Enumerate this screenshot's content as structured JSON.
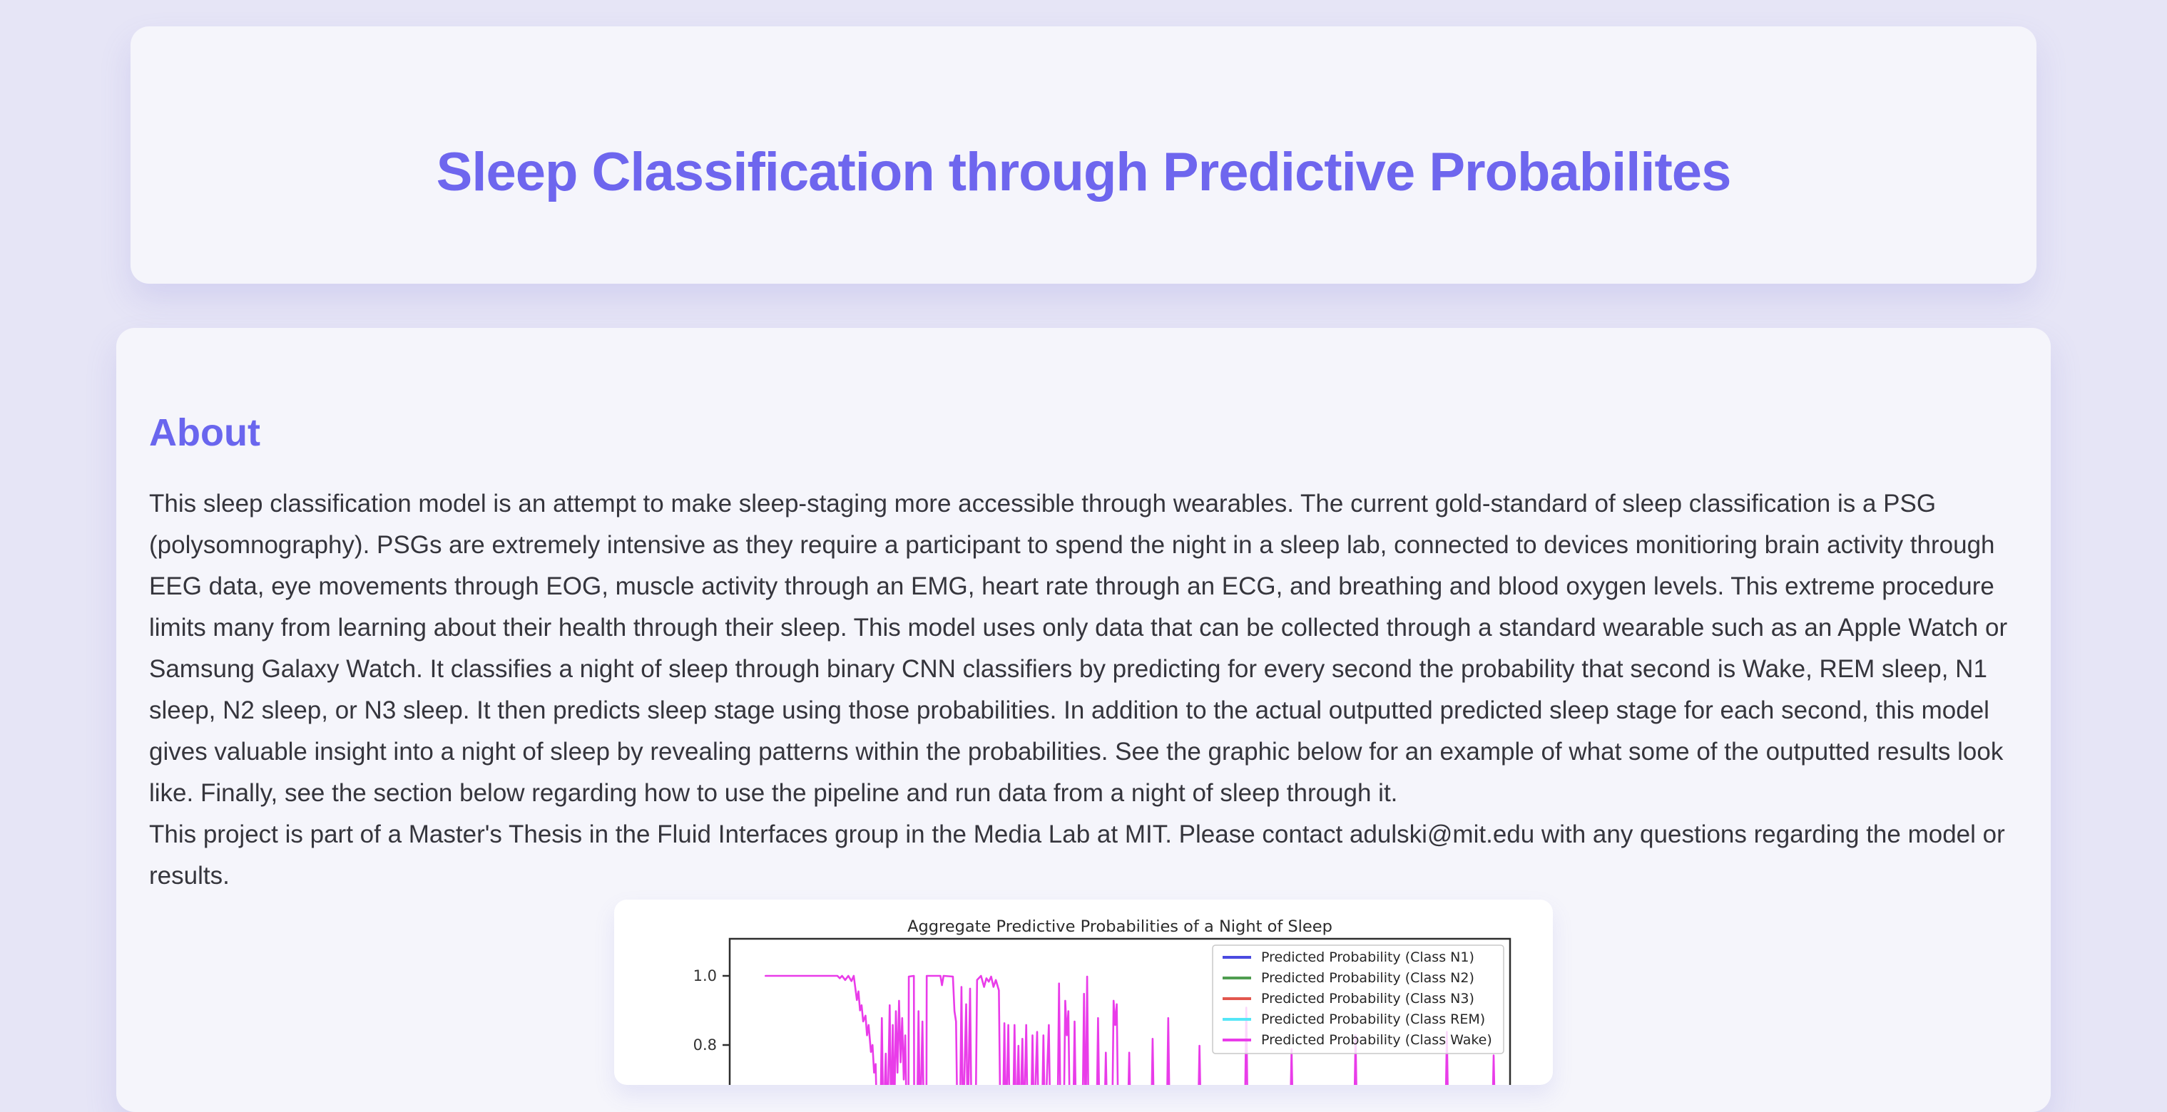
{
  "page": {
    "background_color": "#e6e5f6",
    "card_color": "#f5f5fb",
    "accent_color": "#6e66ee"
  },
  "header": {
    "title": "Sleep Classification through Predictive Probabilites"
  },
  "about": {
    "heading": "About",
    "paragraph1": "This sleep classification model is an attempt to make sleep-staging more accessible through wearables. The current gold-standard of sleep classification is a PSG (polysomnography). PSGs are extremely intensive as they require a participant to spend the night in a sleep lab, connected to devices monitioring brain activity through EEG data, eye movements through EOG, muscle activity through an EMG, heart rate through an ECG, and breathing and blood oxygen levels. This extreme procedure limits many from learning about their health through their sleep. This model uses only data that can be collected through a standard wearable such as an Apple Watch or Samsung Galaxy Watch. It classifies a night of sleep through binary CNN classifiers by predicting for every second the probability that second is Wake, REM sleep, N1 sleep, N2 sleep, or N3 sleep. It then predicts sleep stage using those probabilities. In addition to the actual outputted predicted sleep stage for each second, this model gives valuable insight into a night of sleep by revealing patterns within the probabilities. See the graphic below for an example of what some of the outputted results look like. Finally, see the section below regarding how to use the pipeline and run data from a night of sleep through it.",
    "paragraph2": "This project is part of a Master's Thesis in the Fluid Interfaces group in the Media Lab at MIT. Please contact adulski@mit.edu with any questions regarding the model or results."
  },
  "chart_data": {
    "type": "line",
    "title": "Aggregate Predictive Probabilities of a Night of Sleep",
    "xlabel": "",
    "ylabel": "",
    "grid": false,
    "legend_position": "upper right",
    "yticks": [
      {
        "label": "1.0",
        "value": 1.0
      },
      {
        "label": "0.8",
        "value": 0.8
      }
    ],
    "ylim_visible": [
      0.715,
      1.105
    ],
    "legend": [
      {
        "label": "Predicted Probability (Class N1)",
        "color": "#4a4ae0"
      },
      {
        "label": "Predicted Probability (Class N2)",
        "color": "#4f9d50"
      },
      {
        "label": "Predicted Probability (Class N3)",
        "color": "#e2574e"
      },
      {
        "label": "Predicted Probability (Class REM)",
        "color": "#55e6f7"
      },
      {
        "label": "Predicted Probability (Class Wake)",
        "color": "#e93ce9"
      }
    ],
    "series": [
      {
        "name": "Predicted Probability (Class Wake)",
        "color": "#e93ce9",
        "x_unit": "fraction of night",
        "points": [
          [
            0.046,
            1.0
          ],
          [
            0.138,
            1.0
          ],
          [
            0.141,
            0.993
          ],
          [
            0.144,
            1.0
          ],
          [
            0.148,
            0.988
          ],
          [
            0.152,
            1.0
          ],
          [
            0.156,
            0.985
          ],
          [
            0.159,
            1.0
          ],
          [
            0.161,
            0.965
          ],
          [
            0.163,
            0.93
          ],
          [
            0.165,
            0.955
          ],
          [
            0.167,
            0.9
          ],
          [
            0.169,
            0.915
          ],
          [
            0.171,
            0.868
          ],
          [
            0.174,
            0.885
          ],
          [
            0.176,
            0.828
          ],
          [
            0.178,
            0.858
          ],
          [
            0.181,
            0.78
          ],
          [
            0.183,
            0.8
          ],
          [
            0.185,
            0.72
          ],
          [
            0.187,
            0.745
          ],
          [
            0.189,
            0.55
          ],
          [
            0.193,
            0.55
          ],
          [
            0.195,
            0.878
          ],
          [
            0.197,
            0.55
          ],
          [
            0.2,
            0.775
          ],
          [
            0.202,
            0.55
          ],
          [
            0.205,
            0.915
          ],
          [
            0.207,
            0.55
          ],
          [
            0.209,
            0.858
          ],
          [
            0.211,
            0.6
          ],
          [
            0.213,
            0.898
          ],
          [
            0.215,
            0.72
          ],
          [
            0.217,
            0.928
          ],
          [
            0.219,
            0.75
          ],
          [
            0.221,
            0.878
          ],
          [
            0.223,
            0.7
          ],
          [
            0.225,
            0.828
          ],
          [
            0.227,
            0.55
          ],
          [
            0.229,
            0.55
          ],
          [
            0.2295,
            0.998
          ],
          [
            0.236,
            1.0
          ],
          [
            0.2365,
            0.55
          ],
          [
            0.24,
            0.55
          ],
          [
            0.242,
            0.898
          ],
          [
            0.244,
            0.55
          ],
          [
            0.247,
            0.868
          ],
          [
            0.249,
            0.55
          ],
          [
            0.252,
            0.55
          ],
          [
            0.2525,
            1.0
          ],
          [
            0.27,
            1.0
          ],
          [
            0.272,
            0.973
          ],
          [
            0.274,
            1.0
          ],
          [
            0.286,
            0.998
          ],
          [
            0.288,
            0.898
          ],
          [
            0.29,
            0.868
          ],
          [
            0.292,
            0.55
          ],
          [
            0.295,
            0.55
          ],
          [
            0.297,
            0.968
          ],
          [
            0.299,
            0.55
          ],
          [
            0.303,
            0.918
          ],
          [
            0.305,
            0.55
          ],
          [
            0.308,
            0.963
          ],
          [
            0.31,
            0.55
          ],
          [
            0.315,
            0.55
          ],
          [
            0.317,
            0.988
          ],
          [
            0.322,
            1.0
          ],
          [
            0.326,
            0.968
          ],
          [
            0.329,
            0.993
          ],
          [
            0.332,
            0.983
          ],
          [
            0.335,
            0.998
          ],
          [
            0.338,
            0.968
          ],
          [
            0.341,
            0.988
          ],
          [
            0.345,
            0.958
          ],
          [
            0.347,
            0.55
          ],
          [
            0.35,
            0.55
          ],
          [
            0.352,
            0.863
          ],
          [
            0.354,
            0.55
          ],
          [
            0.357,
            0.858
          ],
          [
            0.359,
            0.55
          ],
          [
            0.363,
            0.55
          ],
          [
            0.365,
            0.858
          ],
          [
            0.367,
            0.55
          ],
          [
            0.37,
            0.798
          ],
          [
            0.372,
            0.55
          ],
          [
            0.375,
            0.818
          ],
          [
            0.377,
            0.55
          ],
          [
            0.38,
            0.858
          ],
          [
            0.382,
            0.55
          ],
          [
            0.386,
            0.55
          ],
          [
            0.388,
            0.828
          ],
          [
            0.39,
            0.55
          ],
          [
            0.394,
            0.838
          ],
          [
            0.396,
            0.55
          ],
          [
            0.4,
            0.55
          ],
          [
            0.402,
            0.828
          ],
          [
            0.404,
            0.55
          ],
          [
            0.409,
            0.858
          ],
          [
            0.411,
            0.55
          ],
          [
            0.42,
            0.55
          ],
          [
            0.422,
            0.978
          ],
          [
            0.424,
            0.55
          ],
          [
            0.428,
            0.55
          ],
          [
            0.43,
            0.928
          ],
          [
            0.432,
            0.828
          ],
          [
            0.434,
            0.898
          ],
          [
            0.436,
            0.55
          ],
          [
            0.44,
            0.55
          ],
          [
            0.442,
            0.868
          ],
          [
            0.444,
            0.55
          ],
          [
            0.452,
            0.55
          ],
          [
            0.454,
            0.948
          ],
          [
            0.456,
            0.55
          ],
          [
            0.458,
            0.998
          ],
          [
            0.46,
            0.55
          ],
          [
            0.47,
            0.55
          ],
          [
            0.472,
            0.878
          ],
          [
            0.474,
            0.55
          ],
          [
            0.48,
            0.55
          ],
          [
            0.482,
            0.778
          ],
          [
            0.484,
            0.55
          ],
          [
            0.49,
            0.55
          ],
          [
            0.492,
            0.928
          ],
          [
            0.494,
            0.858
          ],
          [
            0.496,
            0.918
          ],
          [
            0.498,
            0.55
          ],
          [
            0.51,
            0.55
          ],
          [
            0.512,
            0.778
          ],
          [
            0.514,
            0.55
          ],
          [
            0.54,
            0.55
          ],
          [
            0.542,
            0.818
          ],
          [
            0.544,
            0.55
          ],
          [
            0.56,
            0.55
          ],
          [
            0.562,
            0.878
          ],
          [
            0.564,
            0.55
          ],
          [
            0.6,
            0.55
          ],
          [
            0.602,
            0.798
          ],
          [
            0.604,
            0.55
          ],
          [
            0.66,
            0.55
          ],
          [
            0.662,
            0.908
          ],
          [
            0.664,
            0.55
          ],
          [
            0.718,
            0.55
          ],
          [
            0.72,
            0.788
          ],
          [
            0.722,
            0.55
          ],
          [
            0.8,
            0.55
          ],
          [
            0.802,
            0.828
          ],
          [
            0.804,
            0.55
          ],
          [
            0.917,
            0.55
          ],
          [
            0.919,
            0.838
          ],
          [
            0.921,
            0.55
          ],
          [
            0.977,
            0.55
          ],
          [
            0.979,
            0.77
          ],
          [
            0.981,
            0.55
          ],
          [
            0.988,
            0.55
          ]
        ]
      }
    ]
  }
}
